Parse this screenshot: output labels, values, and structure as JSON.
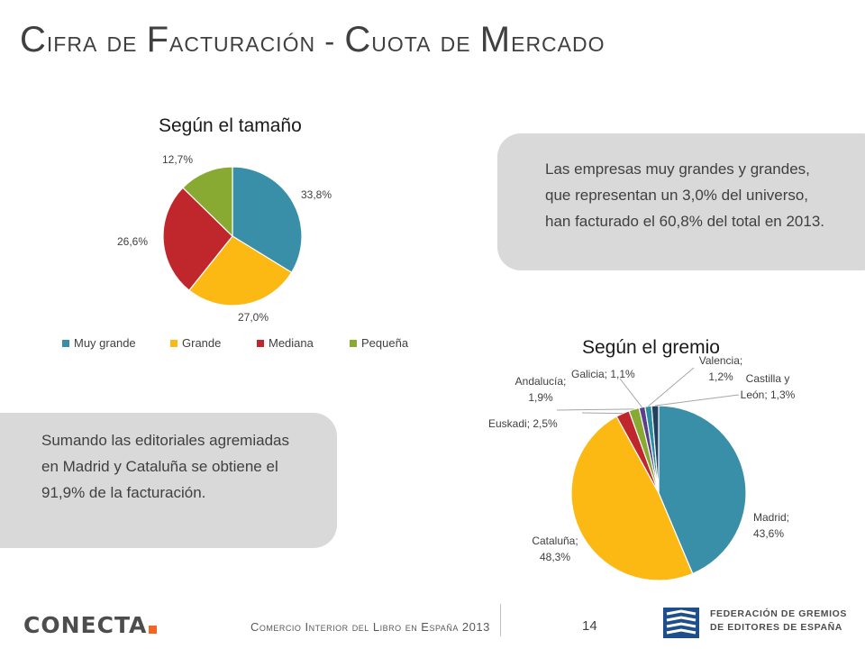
{
  "slide": {
    "title_parts": [
      {
        "text": "C",
        "big": true
      },
      {
        "text": "ifra de ",
        "big": false
      },
      {
        "text": "F",
        "big": true
      },
      {
        "text": "acturación - ",
        "big": false
      },
      {
        "text": "C",
        "big": true
      },
      {
        "text": "uota de ",
        "big": false
      },
      {
        "text": "M",
        "big": true
      },
      {
        "text": "ercado",
        "big": false
      }
    ]
  },
  "callouts": {
    "top_right": "Las empresas muy grandes y grandes, que representan un 3,0% del universo, han facturado el 60,8% del total en 2013.",
    "bottom_left": "Sumando las editoriales agremiadas en Madrid y Cataluña se obtiene el 91,9% de la facturación."
  },
  "footer": {
    "text": "Comercio Interior del Libro en España 2013",
    "page_number": "14",
    "logo_left": "CONECTA",
    "logo_right_line1": "FEDERACIÓN DE GREMIOS",
    "logo_right_line2": "DE EDITORES DE ESPAÑA"
  },
  "chart_data": [
    {
      "type": "pie",
      "title": "Según el tamaño",
      "categories": [
        "Muy grande",
        "Grande",
        "Mediana",
        "Pequeña"
      ],
      "values": [
        33.8,
        27.0,
        26.6,
        12.7
      ],
      "labels": [
        "33,8%",
        "27,0%",
        "26,6%",
        "12,7%"
      ],
      "colors": [
        "#3a8fa8",
        "#fcb813",
        "#c0272d",
        "#88aa33"
      ],
      "legend": "bottom"
    },
    {
      "type": "pie",
      "title": "Según el gremio",
      "categories": [
        "Madrid",
        "Cataluña",
        "Euskadi",
        "Andalucía",
        "Galicia",
        "Valencia",
        "Castilla y León"
      ],
      "values": [
        43.6,
        48.3,
        2.5,
        1.9,
        1.1,
        1.2,
        1.3
      ],
      "labels": [
        "Madrid; 43,6%",
        "Cataluña; 48,3%",
        "Euskadi; 2,5%",
        "Andalucía; 1,9%",
        "Galicia; 1,1%",
        "Valencia; 1,2%",
        "Castilla y León; 1,3%"
      ],
      "colors": [
        "#3a8fa8",
        "#fcb813",
        "#c0272d",
        "#88aa33",
        "#5b3f8c",
        "#2b8fa3",
        "#23405f"
      ],
      "legend": "none"
    }
  ]
}
